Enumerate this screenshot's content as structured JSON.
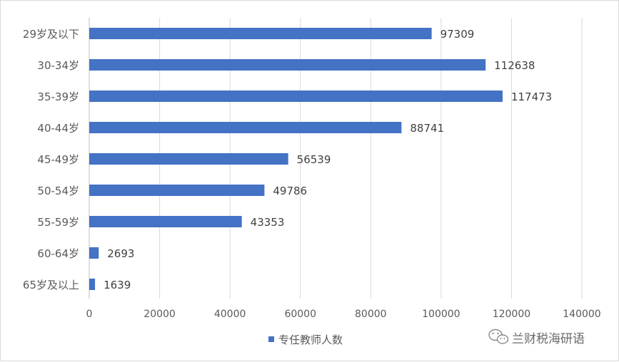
{
  "chart_data": {
    "type": "bar",
    "orientation": "horizontal",
    "categories": [
      "29岁及以下",
      "30-34岁",
      "35-39岁",
      "40-44岁",
      "45-49岁",
      "50-54岁",
      "55-59岁",
      "60-64岁",
      "65岁及以上"
    ],
    "series": [
      {
        "name": "专任教师人数",
        "values": [
          97309,
          112638,
          117473,
          88741,
          56539,
          49786,
          43353,
          2693,
          1639
        ],
        "color": "#4472c4"
      }
    ],
    "xlim": [
      0,
      140000
    ],
    "xticks": [
      0,
      20000,
      40000,
      60000,
      80000,
      100000,
      120000,
      140000
    ],
    "title": "",
    "xlabel": "",
    "ylabel": "",
    "grid": "vertical",
    "legend_position": "bottom",
    "data_labels": true
  },
  "watermark": {
    "text": "兰财税海研语",
    "icon": "wechat-icon"
  }
}
